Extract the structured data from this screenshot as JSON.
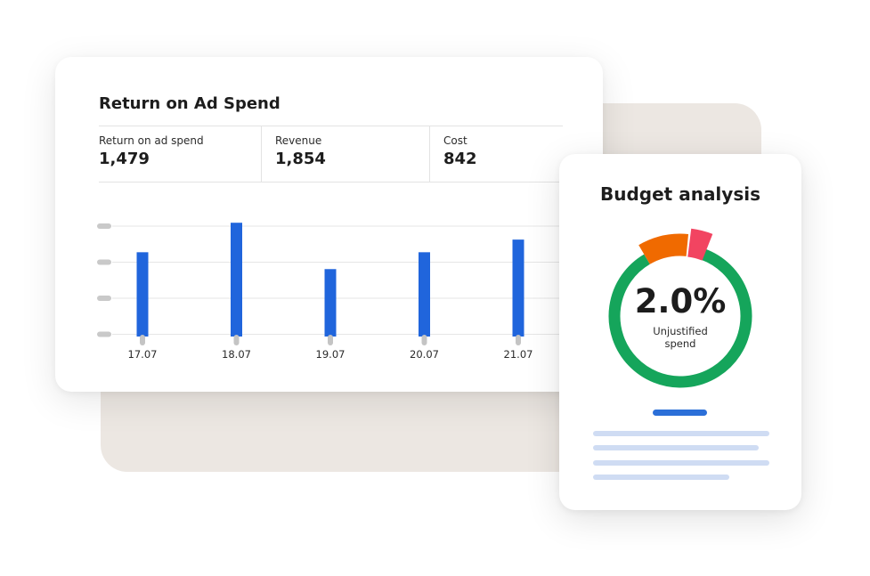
{
  "roas_card": {
    "title": "Return on Ad Spend",
    "metrics": [
      {
        "label": "Return on ad spend",
        "value": "1,479"
      },
      {
        "label": "Revenue",
        "value": "1,854"
      },
      {
        "label": "Cost",
        "value": "842"
      }
    ]
  },
  "chart_data": {
    "type": "bar",
    "categories": [
      "17.07",
      "18.07",
      "19.07",
      "20.07",
      "21.07"
    ],
    "values": [
      100,
      135,
      80,
      100,
      115
    ],
    "ylim": [
      0,
      150
    ],
    "grid": true,
    "legend": "none",
    "bar_color": "#2065dc"
  },
  "budget_card": {
    "title": "Budget analysis",
    "value": "2.0%",
    "label": "Unjustified spend",
    "segments": [
      {
        "color": "#15a55b",
        "value": 86
      },
      {
        "color": "#f06a00",
        "value": 10
      },
      {
        "color": "#f24461",
        "value": 4
      }
    ]
  },
  "colors": {
    "accent_blue": "#2b6fd8",
    "text_line": "#cfdcf3",
    "backdrop": "#ece7e2"
  }
}
